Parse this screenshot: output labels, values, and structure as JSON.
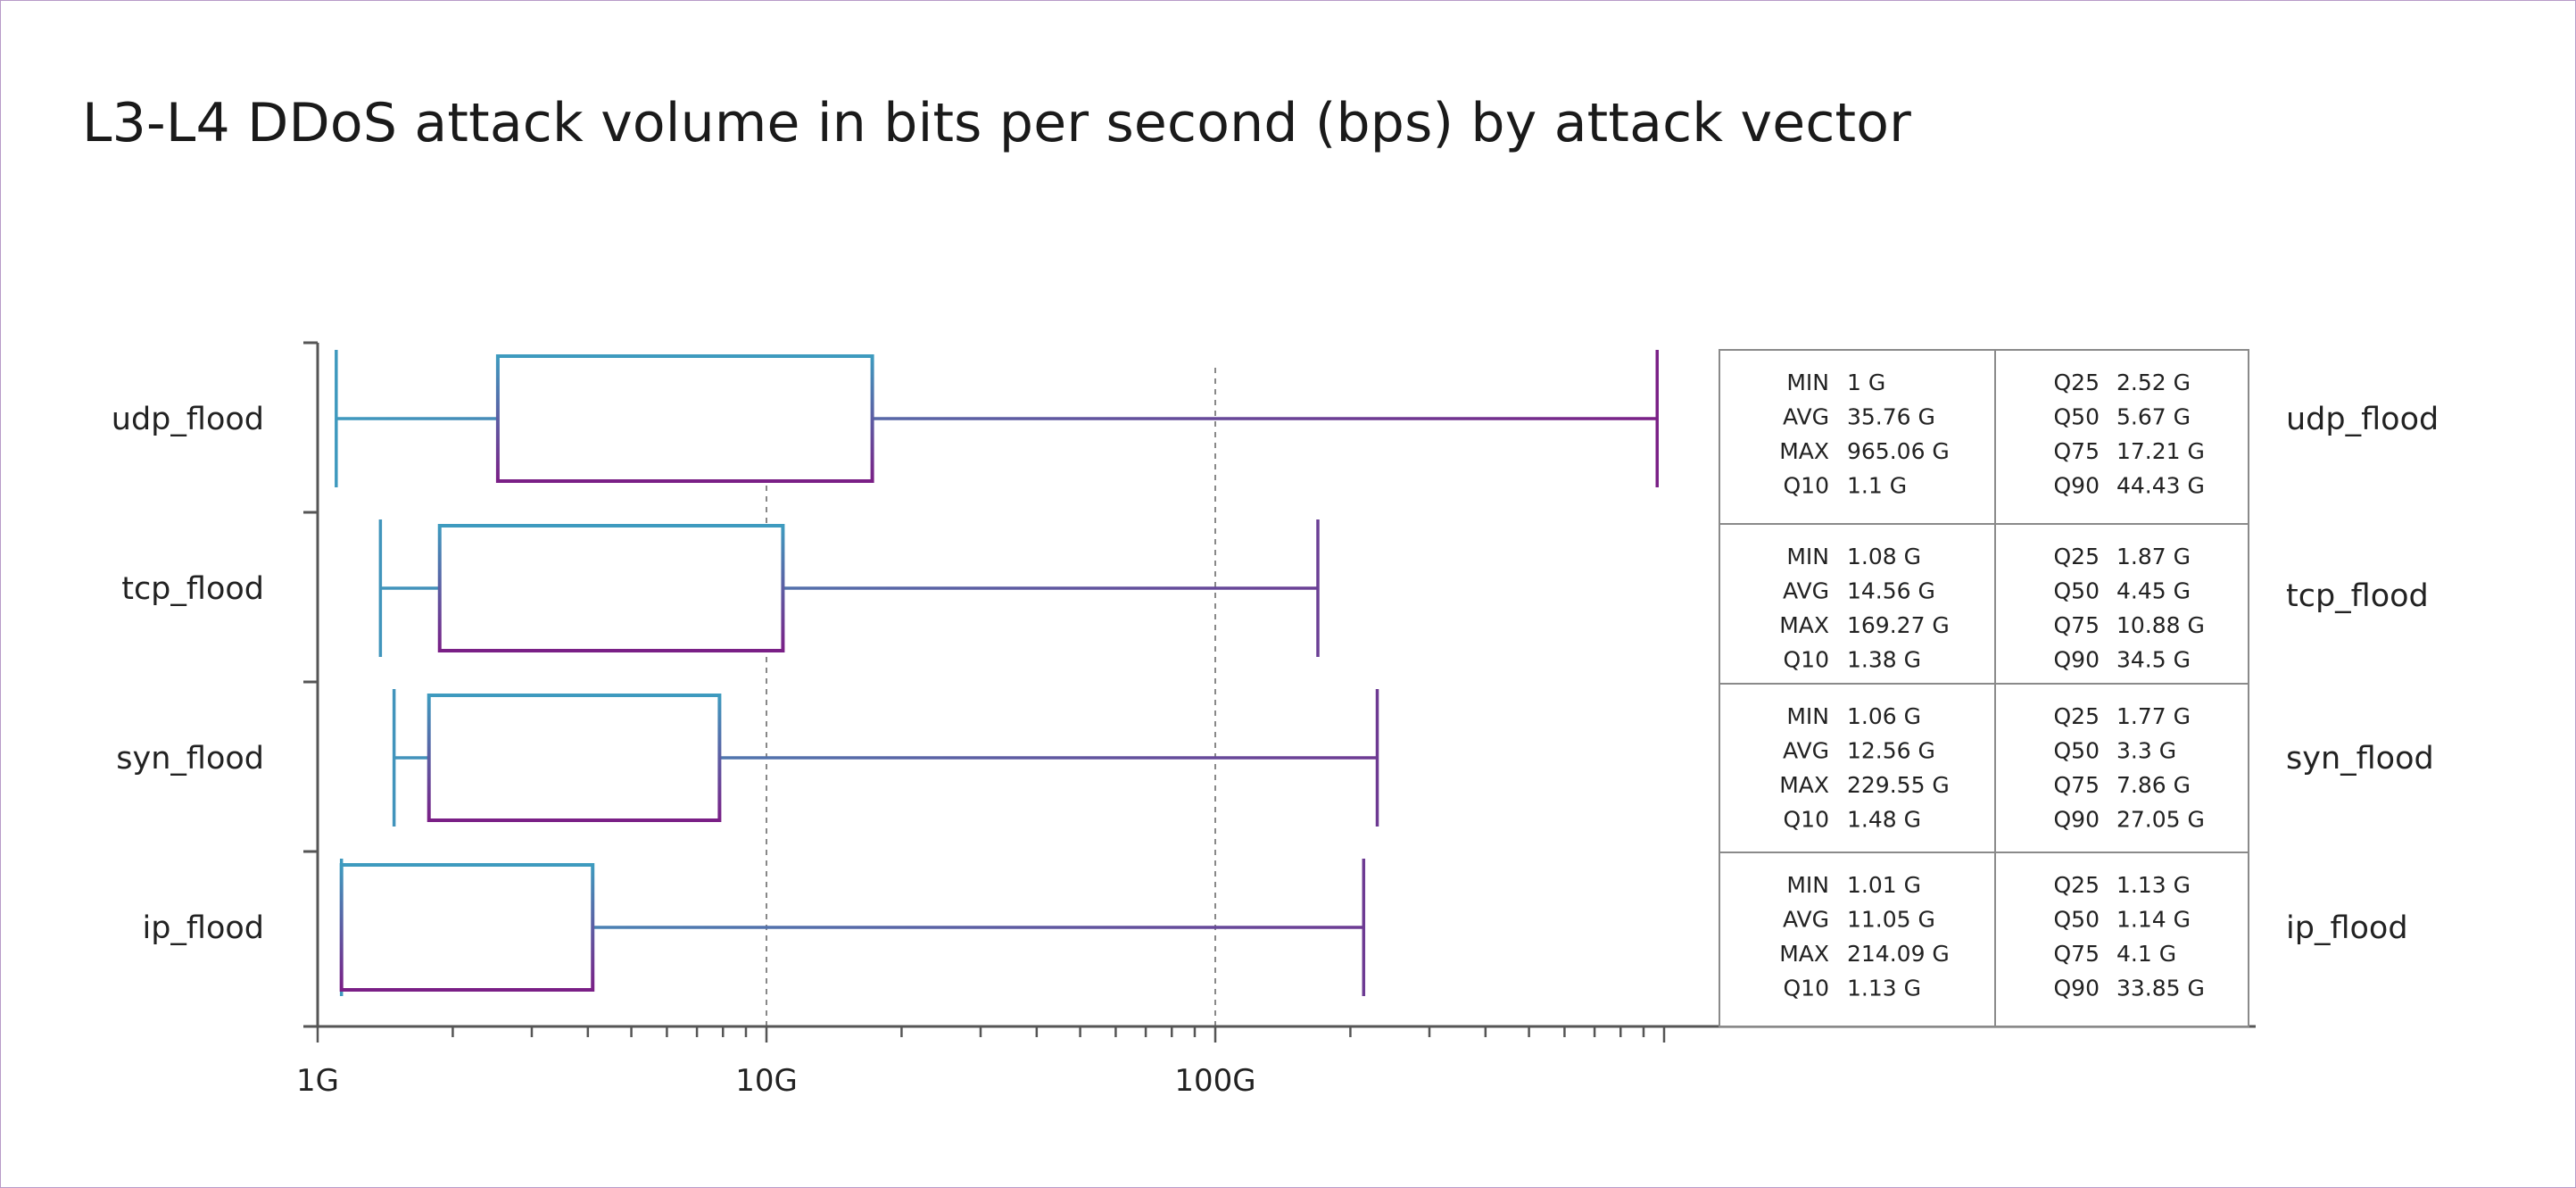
{
  "title": "L3-L4 DDoS attack volume in bits per second (bps) by attack vector",
  "chart_data": {
    "type": "boxplot",
    "title": "L3-L4 DDoS attack volume in bits per second (bps) by attack vector",
    "x_scale": "log",
    "unit": "G",
    "xlim": [
      1,
      1000
    ],
    "x_tick_labels": [
      {
        "value": 1,
        "label": "1G"
      },
      {
        "value": 10,
        "label": "10G"
      },
      {
        "value": 100,
        "label": "100G"
      }
    ],
    "grid_lines_at": [
      10,
      100
    ],
    "categories": [
      "udp_flood",
      "tcp_flood",
      "syn_flood",
      "ip_flood"
    ],
    "series": [
      {
        "name": "udp_flood",
        "min": 1,
        "avg": 35.76,
        "max": 965.06,
        "q10": 1.1,
        "q25": 2.52,
        "q50": 5.67,
        "q75": 17.21,
        "q90": 44.43,
        "stats_text": {
          "MIN": "1 G",
          "AVG": "35.76 G",
          "MAX": "965.06 G",
          "Q10": "1.1 G",
          "Q25": "2.52 G",
          "Q50": "5.67 G",
          "Q75": "17.21 G",
          "Q90": "44.43 G"
        }
      },
      {
        "name": "tcp_flood",
        "min": 1.08,
        "avg": 14.56,
        "max": 169.27,
        "q10": 1.38,
        "q25": 1.87,
        "q50": 4.45,
        "q75": 10.88,
        "q90": 34.5,
        "stats_text": {
          "MIN": "1.08 G",
          "AVG": "14.56 G",
          "MAX": "169.27 G",
          "Q10": "1.38 G",
          "Q25": "1.87 G",
          "Q50": "4.45 G",
          "Q75": "10.88 G",
          "Q90": "34.5 G"
        }
      },
      {
        "name": "syn_flood",
        "min": 1.06,
        "avg": 12.56,
        "max": 229.55,
        "q10": 1.48,
        "q25": 1.77,
        "q50": 3.3,
        "q75": 7.86,
        "q90": 27.05,
        "stats_text": {
          "MIN": "1.06 G",
          "AVG": "12.56 G",
          "MAX": "229.55 G",
          "Q10": "1.48 G",
          "Q25": "1.77 G",
          "Q50": "3.3 G",
          "Q75": "7.86 G",
          "Q90": "27.05 G"
        }
      },
      {
        "name": "ip_flood",
        "min": 1.01,
        "avg": 11.05,
        "max": 214.09,
        "q10": 1.13,
        "q25": 1.13,
        "q50": 1.14,
        "q75": 4.1,
        "q90": 33.85,
        "stats_text": {
          "MIN": "1.01 G",
          "AVG": "11.05 G",
          "MAX": "214.09 G",
          "Q10": "1.13 G",
          "Q25": "1.13 G",
          "Q50": "1.14 G",
          "Q75": "4.1 G",
          "Q90": "33.85 G"
        }
      }
    ],
    "stats_table": {
      "left_keys": [
        "MIN",
        "AVG",
        "MAX",
        "Q10"
      ],
      "right_keys": [
        "Q25",
        "Q50",
        "Q75",
        "Q90"
      ]
    },
    "colors": {
      "gradient_top": "#3e9bbf",
      "gradient_bottom": "#7a1f86",
      "axis": "#555555",
      "grid": "#888888",
      "table_border": "#8a8a8a"
    }
  }
}
